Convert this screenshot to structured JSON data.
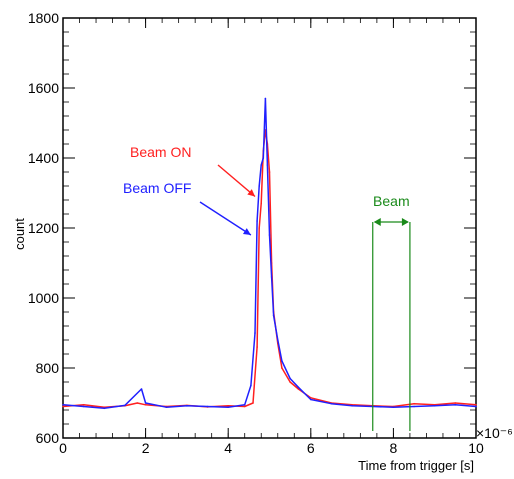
{
  "chart_data": {
    "type": "line",
    "title": "",
    "xlabel": "Time from trigger [s]",
    "ylabel": "count",
    "xlim": [
      0,
      10
    ],
    "ylim": [
      600,
      1800
    ],
    "x_multiplier_label": "×10⁻⁶",
    "x_ticks": [
      0,
      2,
      4,
      6,
      8,
      10
    ],
    "x_tick_labels": [
      "0",
      "2",
      "4",
      "6",
      "8",
      "10"
    ],
    "y_ticks": [
      600,
      800,
      1000,
      1200,
      1400,
      1600,
      1800
    ],
    "y_tick_labels": [
      "600",
      "800",
      "1000",
      "1200",
      "1400",
      "1600",
      "1800"
    ],
    "grid": false,
    "series": [
      {
        "name": "Beam ON",
        "color": "#ff2020",
        "x": [
          0.0,
          0.5,
          1.0,
          1.5,
          1.8,
          2.0,
          2.5,
          3.0,
          3.5,
          4.0,
          4.4,
          4.6,
          4.7,
          4.75,
          4.8,
          4.85,
          4.9,
          4.95,
          5.0,
          5.05,
          5.1,
          5.2,
          5.3,
          5.5,
          5.7,
          6.0,
          6.5,
          7.0,
          7.5,
          8.0,
          8.5,
          9.0,
          9.5,
          10.0
        ],
        "y": [
          690,
          695,
          688,
          692,
          700,
          695,
          690,
          693,
          689,
          692,
          690,
          700,
          860,
          1200,
          1270,
          1420,
          1480,
          1440,
          1360,
          1100,
          960,
          870,
          800,
          760,
          740,
          715,
          700,
          695,
          692,
          690,
          698,
          695,
          700,
          695
        ]
      },
      {
        "name": "Beam OFF",
        "color": "#2020ff",
        "x": [
          0.0,
          0.5,
          1.0,
          1.5,
          1.9,
          2.0,
          2.5,
          3.0,
          3.5,
          4.0,
          4.4,
          4.55,
          4.65,
          4.7,
          4.75,
          4.8,
          4.85,
          4.9,
          4.95,
          5.0,
          5.05,
          5.1,
          5.2,
          5.3,
          5.5,
          5.7,
          6.0,
          6.5,
          7.0,
          7.5,
          8.0,
          8.5,
          9.0,
          9.5,
          10.0
        ],
        "y": [
          695,
          690,
          685,
          693,
          740,
          700,
          688,
          692,
          690,
          688,
          695,
          750,
          900,
          1220,
          1320,
          1380,
          1400,
          1570,
          1380,
          1180,
          1060,
          950,
          880,
          820,
          770,
          745,
          710,
          698,
          692,
          690,
          688,
          690,
          692,
          695,
          690
        ]
      }
    ],
    "annotations": [
      {
        "text": "Beam ON",
        "color": "#ff2020",
        "arrow_to": [
          4.65,
          1290
        ]
      },
      {
        "text": "Beam OFF",
        "color": "#2020ff",
        "arrow_to": [
          4.55,
          1180
        ]
      },
      {
        "text": "Beam",
        "color": "#1a8a1a",
        "range": [
          7.5,
          8.4
        ]
      }
    ]
  }
}
